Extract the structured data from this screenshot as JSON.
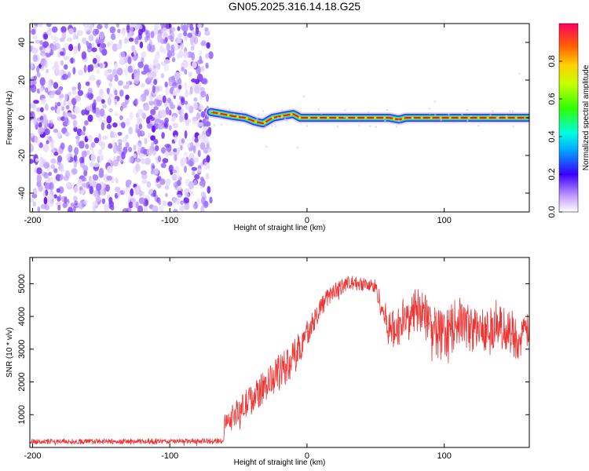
{
  "chart_data": [
    {
      "type": "heatmap",
      "title": "GN05.2025.316.14.18.G25",
      "xlabel": "Height of straight line (km)",
      "ylabel": "Frequency (Hz)",
      "xlim": [
        -202,
        162
      ],
      "ylim": [
        -50,
        50
      ],
      "xticks": [
        -200,
        -100,
        0,
        100
      ],
      "yticks": [
        -40,
        -20,
        0,
        20,
        40
      ],
      "noise_region_x": [
        -202,
        -70
      ],
      "signal_track": {
        "x": [
          -70,
          -62,
          -55,
          -45,
          -38,
          -32,
          -25,
          -18,
          -10,
          -5,
          0,
          20,
          40,
          60,
          67,
          72,
          80,
          100,
          130,
          162
        ],
        "frequency": [
          3,
          2,
          1,
          0,
          -2,
          -3,
          0,
          1,
          2,
          0,
          0,
          0,
          0,
          0,
          -1,
          0,
          0,
          0,
          0,
          0
        ]
      },
      "colorbar": {
        "label": "Normalized spectral amplitude",
        "range": [
          0,
          1
        ],
        "ticks": [
          0.0,
          0.2,
          0.4,
          0.6,
          0.8
        ],
        "tick_labels": [
          "0.0",
          "0.2",
          "0.4",
          "0.6",
          "0.8"
        ]
      }
    },
    {
      "type": "line",
      "xlabel": "Height of straight line (km)",
      "ylabel": "SNR (10 * v/v)",
      "xlim": [
        -202,
        162
      ],
      "ylim": [
        0,
        5800
      ],
      "xticks": [
        -200,
        -100,
        0,
        100
      ],
      "yticks": [
        1000,
        2000,
        3000,
        4000,
        5000
      ],
      "series": [
        {
          "name": "SNR",
          "color": "#ee3333",
          "x": [
            -202,
            -150,
            -100,
            -61,
            -60,
            -50,
            -40,
            -30,
            -20,
            -10,
            0,
            10,
            20,
            30,
            40,
            50,
            55,
            60,
            65,
            70,
            80,
            90,
            100,
            110,
            120,
            130,
            140,
            150,
            155,
            162
          ],
          "y": [
            180,
            180,
            180,
            200,
            800,
            1100,
            1500,
            1900,
            2300,
            2700,
            3500,
            4300,
            4800,
            5000,
            5000,
            4900,
            4200,
            3600,
            3600,
            3900,
            4200,
            3800,
            3300,
            3900,
            3600,
            3600,
            3700,
            3500,
            3200,
            3700
          ],
          "noise_amplitude": [
            100,
            100,
            100,
            100,
            300,
            500,
            600,
            600,
            700,
            700,
            500,
            400,
            300,
            300,
            250,
            300,
            500,
            700,
            800,
            800,
            900,
            900,
            1000,
            900,
            900,
            800,
            800,
            900,
            700,
            700
          ]
        }
      ]
    }
  ]
}
